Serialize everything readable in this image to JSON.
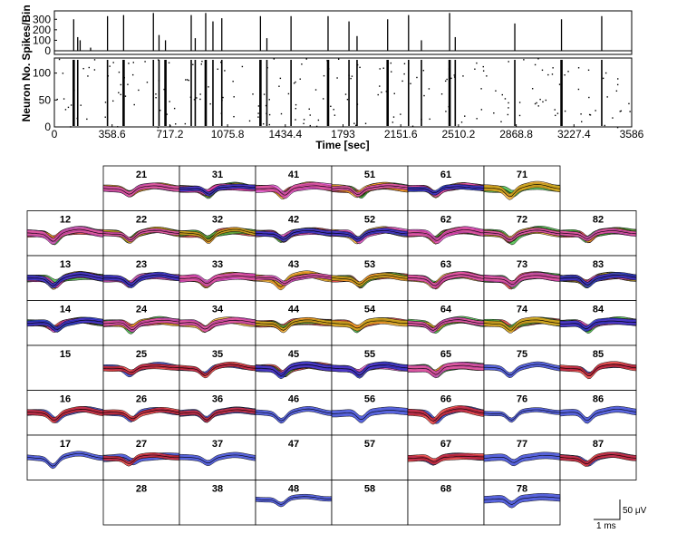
{
  "chart_data": [
    {
      "type": "bar",
      "title": "",
      "ylabel": "Spikes/Bin",
      "yticks": [
        "300",
        "200",
        "100",
        "0"
      ],
      "ytick_values": [
        300,
        200,
        100,
        0
      ],
      "ylim": [
        0,
        380
      ],
      "xlim": [
        0,
        3586
      ],
      "bursts": [
        {
          "t": 120,
          "v": 300
        },
        {
          "t": 145,
          "v": 130
        },
        {
          "t": 160,
          "v": 100
        },
        {
          "t": 225,
          "v": 30
        },
        {
          "t": 330,
          "v": 330
        },
        {
          "t": 430,
          "v": 340
        },
        {
          "t": 615,
          "v": 360
        },
        {
          "t": 650,
          "v": 150
        },
        {
          "t": 690,
          "v": 100
        },
        {
          "t": 850,
          "v": 340
        },
        {
          "t": 875,
          "v": 120
        },
        {
          "t": 940,
          "v": 360
        },
        {
          "t": 985,
          "v": 280
        },
        {
          "t": 1040,
          "v": 310
        },
        {
          "t": 1280,
          "v": 330
        },
        {
          "t": 1320,
          "v": 120
        },
        {
          "t": 1470,
          "v": 330
        },
        {
          "t": 1700,
          "v": 330
        },
        {
          "t": 1830,
          "v": 280
        },
        {
          "t": 1880,
          "v": 140
        },
        {
          "t": 2070,
          "v": 300
        },
        {
          "t": 2200,
          "v": 340
        },
        {
          "t": 2280,
          "v": 100
        },
        {
          "t": 2455,
          "v": 360
        },
        {
          "t": 2490,
          "v": 130
        },
        {
          "t": 2860,
          "v": 260
        },
        {
          "t": 3150,
          "v": 300
        },
        {
          "t": 3400,
          "v": 330
        }
      ]
    },
    {
      "type": "scatter",
      "title": "",
      "xlabel": "Time [sec]",
      "ylabel": "Neuron No.",
      "yticks": [
        "100",
        "50",
        "0"
      ],
      "ytick_values": [
        100,
        50,
        0
      ],
      "ylim": [
        0,
        128
      ],
      "xlim": [
        0,
        3586
      ],
      "xticks": [
        "0",
        "358.6",
        "717.2",
        "1075.8",
        "1434.4",
        "1793",
        "2151.6",
        "2510.2",
        "2868.8",
        "3227.4",
        "3586"
      ],
      "xtick_values": [
        0,
        358.6,
        717.2,
        1075.8,
        1434.4,
        1793,
        2151.6,
        2510.2,
        2868.8,
        3227.4,
        3586
      ],
      "burst_columns": [
        120,
        145,
        330,
        430,
        615,
        650,
        690,
        850,
        875,
        940,
        985,
        1040,
        1280,
        1320,
        1470,
        1700,
        1830,
        1880,
        2070,
        2200,
        2280,
        2455,
        2490,
        2860,
        3150,
        3400
      ]
    },
    {
      "type": "line",
      "title": "",
      "description_rows": [
        "2",
        "3",
        "4",
        "5",
        "6",
        "7",
        "8"
      ],
      "grid_cols": [
        "1",
        "2",
        "3",
        "4",
        "5",
        "6",
        "7",
        "8"
      ],
      "grid_rows": [
        "1",
        "2",
        "3",
        "4",
        "5",
        "6",
        "7",
        "8"
      ],
      "cells": [
        {
          "label": "21",
          "col": 1,
          "row": 0,
          "n": 4
        },
        {
          "label": "31",
          "col": 2,
          "row": 0,
          "n": 5
        },
        {
          "label": "41",
          "col": 3,
          "row": 0,
          "n": 4
        },
        {
          "label": "51",
          "col": 4,
          "row": 0,
          "n": 4
        },
        {
          "label": "61",
          "col": 5,
          "row": 0,
          "n": 5
        },
        {
          "label": "71",
          "col": 6,
          "row": 0,
          "n": 3
        },
        {
          "label": "12",
          "col": 0,
          "row": 1,
          "n": 4
        },
        {
          "label": "22",
          "col": 1,
          "row": 1,
          "n": 4
        },
        {
          "label": "32",
          "col": 2,
          "row": 1,
          "n": 3
        },
        {
          "label": "42",
          "col": 3,
          "row": 1,
          "n": 5
        },
        {
          "label": "52",
          "col": 4,
          "row": 1,
          "n": 5
        },
        {
          "label": "62",
          "col": 5,
          "row": 1,
          "n": 4
        },
        {
          "label": "72",
          "col": 6,
          "row": 1,
          "n": 4
        },
        {
          "label": "82",
          "col": 7,
          "row": 1,
          "n": 4
        },
        {
          "label": "13",
          "col": 0,
          "row": 2,
          "n": 5
        },
        {
          "label": "23",
          "col": 1,
          "row": 2,
          "n": 5
        },
        {
          "label": "33",
          "col": 2,
          "row": 2,
          "n": 4
        },
        {
          "label": "43",
          "col": 3,
          "row": 2,
          "n": 4
        },
        {
          "label": "53",
          "col": 4,
          "row": 2,
          "n": 3
        },
        {
          "label": "63",
          "col": 5,
          "row": 2,
          "n": 4
        },
        {
          "label": "73",
          "col": 6,
          "row": 2,
          "n": 4
        },
        {
          "label": "83",
          "col": 7,
          "row": 2,
          "n": 5
        },
        {
          "label": "14",
          "col": 0,
          "row": 3,
          "n": 5
        },
        {
          "label": "24",
          "col": 1,
          "row": 3,
          "n": 4
        },
        {
          "label": "34",
          "col": 2,
          "row": 3,
          "n": 4
        },
        {
          "label": "44",
          "col": 3,
          "row": 3,
          "n": 3
        },
        {
          "label": "54",
          "col": 4,
          "row": 3,
          "n": 3
        },
        {
          "label": "64",
          "col": 5,
          "row": 3,
          "n": 4
        },
        {
          "label": "74",
          "col": 6,
          "row": 3,
          "n": 3
        },
        {
          "label": "84",
          "col": 7,
          "row": 3,
          "n": 5
        },
        {
          "label": "15",
          "col": 0,
          "row": 4,
          "n": 0
        },
        {
          "label": "25",
          "col": 1,
          "row": 4,
          "n": 2
        },
        {
          "label": "35",
          "col": 2,
          "row": 4,
          "n": 2
        },
        {
          "label": "45",
          "col": 3,
          "row": 4,
          "n": 5
        },
        {
          "label": "55",
          "col": 4,
          "row": 4,
          "n": 5
        },
        {
          "label": "65",
          "col": 5,
          "row": 4,
          "n": 4
        },
        {
          "label": "75",
          "col": 6,
          "row": 4,
          "n": 1
        },
        {
          "label": "85",
          "col": 7,
          "row": 4,
          "n": 2
        },
        {
          "label": "16",
          "col": 0,
          "row": 5,
          "n": 2
        },
        {
          "label": "26",
          "col": 1,
          "row": 5,
          "n": 2
        },
        {
          "label": "36",
          "col": 2,
          "row": 5,
          "n": 2
        },
        {
          "label": "46",
          "col": 3,
          "row": 5,
          "n": 1
        },
        {
          "label": "56",
          "col": 4,
          "row": 5,
          "n": 1
        },
        {
          "label": "66",
          "col": 5,
          "row": 5,
          "n": 2
        },
        {
          "label": "76",
          "col": 6,
          "row": 5,
          "n": 1
        },
        {
          "label": "86",
          "col": 7,
          "row": 5,
          "n": 1
        },
        {
          "label": "17",
          "col": 0,
          "row": 6,
          "n": 1
        },
        {
          "label": "27",
          "col": 1,
          "row": 6,
          "n": 2
        },
        {
          "label": "37",
          "col": 2,
          "row": 6,
          "n": 1
        },
        {
          "label": "47",
          "col": 3,
          "row": 6,
          "n": 0
        },
        {
          "label": "57",
          "col": 4,
          "row": 6,
          "n": 0
        },
        {
          "label": "67",
          "col": 5,
          "row": 6,
          "n": 2
        },
        {
          "label": "77",
          "col": 6,
          "row": 6,
          "n": 1
        },
        {
          "label": "87",
          "col": 7,
          "row": 6,
          "n": 2
        },
        {
          "label": "28",
          "col": 1,
          "row": 7,
          "n": 0
        },
        {
          "label": "38",
          "col": 2,
          "row": 7,
          "n": 0
        },
        {
          "label": "48",
          "col": 3,
          "row": 7,
          "n": 1
        },
        {
          "label": "58",
          "col": 4,
          "row": 7,
          "n": 0
        },
        {
          "label": "68",
          "col": 5,
          "row": 7,
          "n": 0
        },
        {
          "label": "78",
          "col": 6,
          "row": 7,
          "n": 1
        }
      ],
      "series_colors": [
        "#1f2fd0",
        "#e32222",
        "#2fb52f",
        "#f5a81c",
        "#e040c8"
      ],
      "scale_bar": {
        "voltage_label": "50 μV",
        "time_label": "1 ms"
      }
    }
  ]
}
